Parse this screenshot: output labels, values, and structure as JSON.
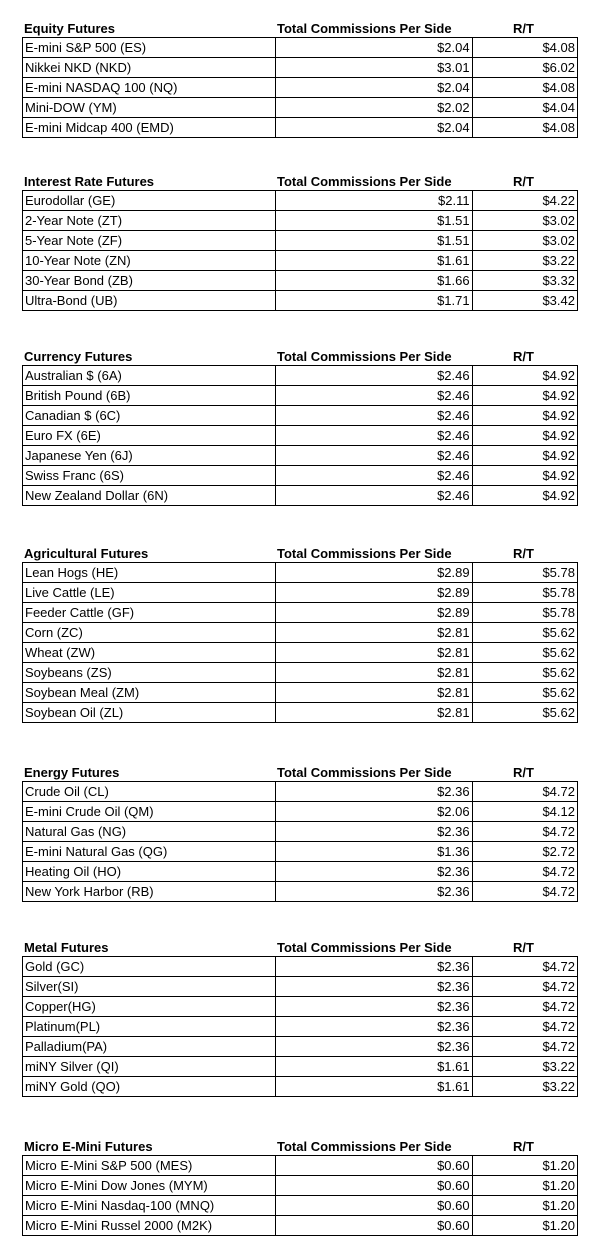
{
  "sections": [
    {
      "title": "Equity Futures",
      "col_commission": "Total Commissions Per Side",
      "col_rt": "R/T",
      "rows": [
        {
          "name": "E-mini S&P 500 (ES)",
          "commission": "$2.04",
          "rt": "$4.08"
        },
        {
          "name": "Nikkei NKD (NKD)",
          "commission": "$3.01",
          "rt": "$6.02"
        },
        {
          "name": "E-mini NASDAQ 100 (NQ)",
          "commission": "$2.04",
          "rt": "$4.08"
        },
        {
          "name": "Mini-DOW (YM)",
          "commission": "$2.02",
          "rt": "$4.04"
        },
        {
          "name": "E-mini Midcap 400 (EMD)",
          "commission": "$2.04",
          "rt": "$4.08"
        }
      ]
    },
    {
      "title": "Interest Rate Futures",
      "col_commission": "Total Commissions Per Side",
      "col_rt": "R/T",
      "rows": [
        {
          "name": "Eurodollar (GE)",
          "commission": "$2.11",
          "rt": "$4.22"
        },
        {
          "name": "2-Year Note (ZT)",
          "commission": "$1.51",
          "rt": "$3.02"
        },
        {
          "name": "5-Year Note (ZF)",
          "commission": "$1.51",
          "rt": "$3.02"
        },
        {
          "name": "10-Year Note (ZN)",
          "commission": "$1.61",
          "rt": "$3.22"
        },
        {
          "name": "30-Year Bond (ZB)",
          "commission": "$1.66",
          "rt": "$3.32"
        },
        {
          "name": "Ultra-Bond (UB)",
          "commission": "$1.71",
          "rt": "$3.42"
        }
      ]
    },
    {
      "title": "Currency Futures",
      "col_commission": "Total Commissions Per Side",
      "col_rt": "R/T",
      "rows": [
        {
          "name": "Australian $ (6A)",
          "commission": "$2.46",
          "rt": "$4.92"
        },
        {
          "name": "British Pound (6B)",
          "commission": "$2.46",
          "rt": "$4.92"
        },
        {
          "name": "Canadian $ (6C)",
          "commission": "$2.46",
          "rt": "$4.92"
        },
        {
          "name": "Euro FX (6E)",
          "commission": "$2.46",
          "rt": "$4.92"
        },
        {
          "name": "Japanese Yen (6J)",
          "commission": "$2.46",
          "rt": "$4.92"
        },
        {
          "name": "Swiss Franc (6S)",
          "commission": "$2.46",
          "rt": "$4.92"
        },
        {
          "name": "New Zealand Dollar (6N)",
          "commission": "$2.46",
          "rt": "$4.92"
        }
      ]
    },
    {
      "title": "Agricultural Futures",
      "col_commission": "Total Commissions Per Side",
      "col_rt": "R/T",
      "rows": [
        {
          "name": "Lean Hogs (HE)",
          "commission": "$2.89",
          "rt": "$5.78"
        },
        {
          "name": "Live Cattle (LE)",
          "commission": "$2.89",
          "rt": "$5.78"
        },
        {
          "name": "Feeder Cattle (GF)",
          "commission": "$2.89",
          "rt": "$5.78"
        },
        {
          "name": "Corn (ZC)",
          "commission": "$2.81",
          "rt": "$5.62"
        },
        {
          "name": "Wheat (ZW)",
          "commission": "$2.81",
          "rt": "$5.62"
        },
        {
          "name": "Soybeans (ZS)",
          "commission": "$2.81",
          "rt": "$5.62"
        },
        {
          "name": "Soybean Meal (ZM)",
          "commission": "$2.81",
          "rt": "$5.62"
        },
        {
          "name": "Soybean Oil (ZL)",
          "commission": "$2.81",
          "rt": "$5.62"
        }
      ]
    },
    {
      "title": "Energy Futures",
      "col_commission": "Total Commissions Per Side",
      "col_rt": "R/T",
      "rows": [
        {
          "name": "Crude Oil (CL)",
          "commission": "$2.36",
          "rt": "$4.72"
        },
        {
          "name": "E-mini Crude Oil (QM)",
          "commission": "$2.06",
          "rt": "$4.12"
        },
        {
          "name": "Natural Gas (NG)",
          "commission": "$2.36",
          "rt": "$4.72"
        },
        {
          "name": "E-mini Natural Gas (QG)",
          "commission": "$1.36",
          "rt": "$2.72"
        },
        {
          "name": "Heating Oil (HO)",
          "commission": "$2.36",
          "rt": "$4.72"
        },
        {
          "name": "New York Harbor (RB)",
          "commission": "$2.36",
          "rt": "$4.72"
        }
      ]
    },
    {
      "title": "Metal Futures",
      "col_commission": "Total Commissions Per Side",
      "col_rt": "R/T",
      "rows": [
        {
          "name": "Gold (GC)",
          "commission": "$2.36",
          "rt": "$4.72"
        },
        {
          "name": "Silver(SI)",
          "commission": "$2.36",
          "rt": "$4.72"
        },
        {
          "name": "Copper(HG)",
          "commission": "$2.36",
          "rt": "$4.72"
        },
        {
          "name": "Platinum(PL)",
          "commission": "$2.36",
          "rt": "$4.72"
        },
        {
          "name": "Palladium(PA)",
          "commission": "$2.36",
          "rt": "$4.72"
        },
        {
          "name": "miNY Silver (QI)",
          "commission": "$1.61",
          "rt": "$3.22"
        },
        {
          "name": "miNY Gold (QO)",
          "commission": "$1.61",
          "rt": "$3.22"
        }
      ]
    },
    {
      "title": "Micro E-Mini Futures",
      "col_commission": "Total Commissions Per Side",
      "col_rt": "R/T",
      "rows": [
        {
          "name": "Micro E-Mini S&P 500 (MES)",
          "commission": "$0.60",
          "rt": "$1.20"
        },
        {
          "name": "Micro E-Mini Dow Jones (MYM)",
          "commission": "$0.60",
          "rt": "$1.20"
        },
        {
          "name": "Micro E-Mini Nasdaq-100 (MNQ)",
          "commission": "$0.60",
          "rt": "$1.20"
        },
        {
          "name": "Micro E-Mini Russel 2000 (M2K)",
          "commission": "$0.60",
          "rt": "$1.20"
        }
      ]
    }
  ]
}
